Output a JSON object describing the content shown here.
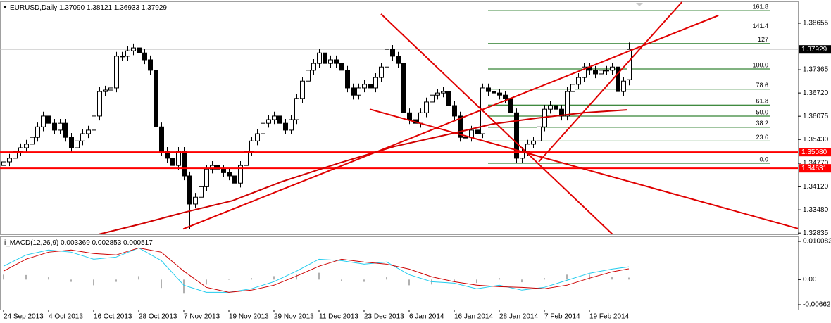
{
  "chart_data": [
    {
      "type": "candlestick",
      "title": "EURUSD,Daily",
      "ohlc_labels": [
        "1.37090",
        "1.38121",
        "1.36933",
        "1.37929"
      ],
      "categories": [
        "24 Sep 2013",
        null,
        null,
        null,
        null,
        null,
        null,
        null,
        "4 Oct 2013",
        null,
        null,
        null,
        null,
        null,
        null,
        null,
        "16 Oct 2013",
        null,
        null,
        null,
        null,
        null,
        null,
        null,
        "28 Oct 2013",
        null,
        null,
        null,
        null,
        null,
        null,
        null,
        "7 Nov 2013",
        null,
        null,
        null,
        null,
        null,
        null,
        null,
        "19 Nov 2013",
        null,
        null,
        null,
        null,
        null,
        null,
        null,
        "29 Nov 2013",
        null,
        null,
        null,
        null,
        null,
        null,
        null,
        "11 Dec 2013",
        null,
        null,
        null,
        null,
        null,
        null,
        null,
        "23 Dec 2013",
        null,
        null,
        null,
        null,
        null,
        null,
        null,
        "6 Jan 2014",
        null,
        null,
        null,
        null,
        null,
        null,
        null,
        "16 Jan 2014",
        null,
        null,
        null,
        null,
        null,
        null,
        null,
        "28 Jan 2014",
        null,
        null,
        null,
        null,
        null,
        null,
        null,
        "7 Feb 2014",
        null,
        null,
        null,
        null,
        null,
        null,
        null,
        "19 Feb 2014",
        null,
        null,
        null,
        null,
        null,
        null,
        null
      ],
      "open": [
        1.3471,
        1.3481,
        1.3491,
        1.351,
        1.352,
        1.353,
        1.3549,
        1.3578,
        1.3608,
        1.3588,
        1.3569,
        1.3588,
        1.3549,
        1.352,
        1.3539,
        1.3559,
        1.3569,
        1.3608,
        1.3676,
        1.368,
        1.3686,
        1.3774,
        1.3774,
        1.3789,
        1.3797,
        1.3783,
        1.3764,
        1.3735,
        1.3578,
        1.351,
        1.3491,
        1.3471,
        1.351,
        1.3442,
        1.3364,
        1.3383,
        1.3412,
        1.3461,
        1.3471,
        1.3461,
        1.3451,
        1.3442,
        1.3422,
        1.3471,
        1.351,
        1.3539,
        1.3559,
        1.3588,
        1.3598,
        1.3608,
        1.3588,
        1.3569,
        1.3598,
        1.3657,
        1.3705,
        1.3735,
        1.3754,
        1.3783,
        1.3754,
        1.3764,
        1.3754,
        1.3735,
        1.3686,
        1.3666,
        1.3686,
        1.3696,
        1.3686,
        1.3715,
        1.3744,
        1.3793,
        1.3774,
        1.3754,
        1.3617,
        1.3598,
        1.3588,
        1.3617,
        1.3647,
        1.3666,
        1.3672,
        1.3676,
        1.3637,
        1.3608,
        1.3549,
        1.3549,
        1.3569,
        1.3559,
        1.3686,
        1.3676,
        1.3672,
        1.3666,
        1.3657,
        1.3617,
        1.3491,
        1.351,
        1.353,
        1.3539,
        1.3578,
        1.3627,
        1.3637,
        1.3627,
        1.3608,
        1.3676,
        1.3696,
        1.3715,
        1.3744,
        1.3735,
        1.3725,
        1.3735,
        1.3735,
        1.3744,
        1.3676,
        1.3709
      ],
      "high": [
        1.3493,
        1.3503,
        1.3522,
        1.3532,
        1.3542,
        1.3561,
        1.359,
        1.362,
        1.362,
        1.36,
        1.36,
        1.36,
        1.3561,
        1.3551,
        1.3571,
        1.3581,
        1.362,
        1.3688,
        1.3692,
        1.3698,
        1.3786,
        1.3786,
        1.3801,
        1.3809,
        1.3809,
        1.3795,
        1.3776,
        1.3747,
        1.359,
        1.3522,
        1.3503,
        1.3522,
        1.3522,
        1.3454,
        1.3395,
        1.3424,
        1.3473,
        1.3483,
        1.3483,
        1.3473,
        1.3463,
        1.3454,
        1.3483,
        1.3522,
        1.3551,
        1.3571,
        1.36,
        1.361,
        1.362,
        1.362,
        1.36,
        1.361,
        1.3669,
        1.3717,
        1.3747,
        1.3766,
        1.3795,
        1.3795,
        1.3776,
        1.3776,
        1.3766,
        1.3747,
        1.3698,
        1.3698,
        1.3708,
        1.3708,
        1.3727,
        1.3756,
        1.3893,
        1.3805,
        1.3786,
        1.3766,
        1.3629,
        1.361,
        1.3629,
        1.3659,
        1.3678,
        1.3684,
        1.3688,
        1.3688,
        1.3649,
        1.362,
        1.3561,
        1.3581,
        1.3581,
        1.3698,
        1.3698,
        1.3688,
        1.3684,
        1.3678,
        1.3669,
        1.3629,
        1.3522,
        1.3542,
        1.3551,
        1.359,
        1.3639,
        1.3649,
        1.3649,
        1.3639,
        1.3688,
        1.3708,
        1.3727,
        1.3756,
        1.3756,
        1.3747,
        1.3747,
        1.3747,
        1.3756,
        1.3756,
        1.3717,
        1.38121
      ],
      "low": [
        1.3459,
        1.3469,
        1.3479,
        1.3498,
        1.3508,
        1.3518,
        1.3537,
        1.3566,
        1.3576,
        1.3557,
        1.3557,
        1.3537,
        1.3508,
        1.3508,
        1.3527,
        1.3547,
        1.3557,
        1.3596,
        1.3664,
        1.3668,
        1.3674,
        1.3762,
        1.3762,
        1.3777,
        1.3771,
        1.3752,
        1.3723,
        1.3566,
        1.3498,
        1.3479,
        1.3459,
        1.3459,
        1.343,
        1.3295,
        1.3352,
        1.3371,
        1.34,
        1.3449,
        1.3449,
        1.3439,
        1.343,
        1.341,
        1.341,
        1.3459,
        1.3498,
        1.3527,
        1.3547,
        1.3576,
        1.3586,
        1.3576,
        1.3557,
        1.3557,
        1.3586,
        1.3645,
        1.3693,
        1.3723,
        1.3742,
        1.3742,
        1.3742,
        1.3742,
        1.3723,
        1.3674,
        1.3654,
        1.3654,
        1.3674,
        1.3674,
        1.3674,
        1.3703,
        1.3732,
        1.3762,
        1.3742,
        1.3605,
        1.3586,
        1.3576,
        1.3576,
        1.3605,
        1.3635,
        1.3654,
        1.366,
        1.3625,
        1.3596,
        1.3537,
        1.3537,
        1.3537,
        1.3547,
        1.3547,
        1.3664,
        1.366,
        1.3654,
        1.3645,
        1.3605,
        1.3477,
        1.3479,
        1.3498,
        1.3518,
        1.3527,
        1.3566,
        1.3615,
        1.3615,
        1.3596,
        1.3596,
        1.3664,
        1.3684,
        1.3703,
        1.3723,
        1.3713,
        1.3713,
        1.3723,
        1.3723,
        1.364,
        1.3664,
        1.36933
      ],
      "close": [
        1.3481,
        1.3491,
        1.351,
        1.352,
        1.353,
        1.3549,
        1.3578,
        1.3608,
        1.3588,
        1.3569,
        1.3588,
        1.3549,
        1.352,
        1.3539,
        1.3559,
        1.3569,
        1.3608,
        1.3676,
        1.368,
        1.3686,
        1.3774,
        1.3774,
        1.3789,
        1.3797,
        1.3783,
        1.3764,
        1.3735,
        1.3578,
        1.351,
        1.3491,
        1.3471,
        1.351,
        1.3442,
        1.3364,
        1.3383,
        1.3412,
        1.3461,
        1.3471,
        1.3461,
        1.3451,
        1.3442,
        1.3422,
        1.3471,
        1.351,
        1.3539,
        1.3559,
        1.3588,
        1.3598,
        1.3608,
        1.3588,
        1.3569,
        1.3598,
        1.3657,
        1.3705,
        1.3735,
        1.3754,
        1.3783,
        1.3754,
        1.3764,
        1.3754,
        1.3735,
        1.3686,
        1.3666,
        1.3686,
        1.3696,
        1.3686,
        1.3715,
        1.3744,
        1.3793,
        1.3774,
        1.3754,
        1.3617,
        1.3598,
        1.3588,
        1.3617,
        1.3647,
        1.3666,
        1.3672,
        1.3676,
        1.3637,
        1.3608,
        1.3549,
        1.3549,
        1.3569,
        1.3559,
        1.3686,
        1.3676,
        1.3672,
        1.3666,
        1.3657,
        1.3617,
        1.3491,
        1.351,
        1.353,
        1.3539,
        1.3578,
        1.3627,
        1.3637,
        1.3627,
        1.3608,
        1.3676,
        1.3696,
        1.3715,
        1.3744,
        1.3735,
        1.3725,
        1.3735,
        1.3735,
        1.3744,
        1.3676,
        1.3705,
        1.37929
      ],
      "up_color": "#ffffff",
      "down_color": "#000000",
      "ylim": [
        1.328,
        1.3924
      ],
      "yticks": [
        1.38655,
        1.37365,
        {
          "value": 1.3672,
          "label": "1.36720"
        },
        1.36075,
        {
          "value": 1.3543,
          "label": "1.35430"
        },
        {
          "value": 1.3477,
          "label": "1.34770"
        },
        {
          "value": 1.3412,
          "label": "1.34120"
        },
        {
          "value": 1.3348,
          "label": "1.33480"
        },
        1.32835
      ],
      "moving_average": {
        "color": "#d00000",
        "x": [
          16.875,
          24.375,
          31.875,
          40.625,
          49.375,
          59.375,
          69.375,
          79.375,
          86.875,
          94.375,
          103.125,
          110.625
        ],
        "y": [
          1.328,
          1.33088,
          1.33401,
          1.33733,
          1.3426,
          1.34768,
          1.35236,
          1.35588,
          1.35861,
          1.36018,
          1.36174,
          1.36252
        ]
      },
      "trendline_color": "#e00000",
      "trendlines": [
        {
          "x": [
            67,
            108.1
          ],
          "y": [
            1.3891,
            1.328
          ]
        },
        {
          "x": [
            65,
            141.25
          ],
          "y": [
            1.3627,
            1.3295
          ]
        },
        {
          "x": [
            31.9,
            126.9
          ],
          "y": [
            1.3295,
            1.3887
          ]
        },
        {
          "x": [
            95,
            120.4
          ],
          "y": [
            1.3481,
            1.3924
          ]
        }
      ],
      "fib": {
        "color": "#006400",
        "x": [
          86,
          136
        ],
        "levels": [
          {
            "label": "161.8",
            "value": 1.39003
          },
          {
            "label": "141.4",
            "value": 1.38469
          },
          {
            "label": "127",
            "value": 1.38092
          },
          {
            "label": "100.0",
            "value": 1.37386
          },
          {
            "label": "78.6",
            "value": 1.36826
          },
          {
            "label": "61.8",
            "value": 1.36387
          },
          {
            "label": "50.0",
            "value": 1.36078
          },
          {
            "label": "38.2",
            "value": 1.35769
          },
          {
            "label": "23.6",
            "value": 1.35387
          },
          {
            "label": "0.0",
            "value": 1.3477
          }
        ]
      },
      "hline_color": "#ff0000",
      "hlines": [
        {
          "value": 1.3508,
          "label": "1.35080"
        },
        {
          "value": 1.34631,
          "label": "1.34631"
        }
      ]
    },
    {
      "type": "line",
      "title": "i_MACD(12,26,9)",
      "x": [
        0,
        4,
        8,
        12,
        16,
        20,
        24,
        28,
        32,
        36,
        40,
        44,
        48,
        52,
        56,
        60,
        64,
        68,
        72,
        76,
        80,
        84,
        88,
        92,
        96,
        100,
        104,
        108,
        111
      ],
      "series": [
        {
          "color": "#22ccee",
          "values": [
            0.00353,
            0.0065,
            0.0078,
            0.00724,
            0.00538,
            0.00594,
            0.00835,
            0.00501,
            -0.00148,
            -0.00334,
            -0.00334,
            -0.00241,
            -0.00056,
            0.00223,
            0.00538,
            0.00501,
            0.00408,
            0.00464,
            0.0013,
            -0.00056,
            -0.00093,
            -0.00241,
            -0.00148,
            -0.00278,
            -0.00204,
            -0.00019,
            0.00167,
            0.00278,
            0.003369
          ]
        },
        {
          "color": "#cc0000",
          "values": [
            0.00223,
            0.00538,
            0.00724,
            0.0078,
            0.00687,
            0.0065,
            0.00835,
            0.00724,
            0.00223,
            -0.00204,
            -0.00334,
            -0.00278,
            -0.00148,
            0.00093,
            0.00353,
            0.00538,
            0.00464,
            0.00408,
            0.00278,
            0.00074,
            -0.00056,
            -0.00148,
            -0.00186,
            -0.00204,
            -0.00241,
            -0.00148,
            0.00037,
            0.00204,
            0.002853
          ]
        }
      ],
      "histogram": {
        "color": "#b0b0b0",
        "values": [
          0.0013,
          0.0012,
          0.0006,
          -0.0006,
          -0.0015,
          -0.0006,
          0.0009,
          -0.0022,
          -0.0037,
          -0.0013,
          0,
          0.0004,
          0.0009,
          0.0013,
          0.0018,
          -0.0004,
          -0.0006,
          0.0006,
          -0.0015,
          -0.0013,
          -0.0004,
          -0.0009,
          0.0004,
          -0.0007,
          0.0004,
          0.0013,
          0.0013,
          0.0007,
          0.000517
        ]
      },
      "ylim": [
        -0.00792,
        0.01138
      ],
      "yticks": [
        0.010082,
        {
          "value": 0,
          "label": "0.00"
        },
        -0.006621
      ]
    }
  ]
}
